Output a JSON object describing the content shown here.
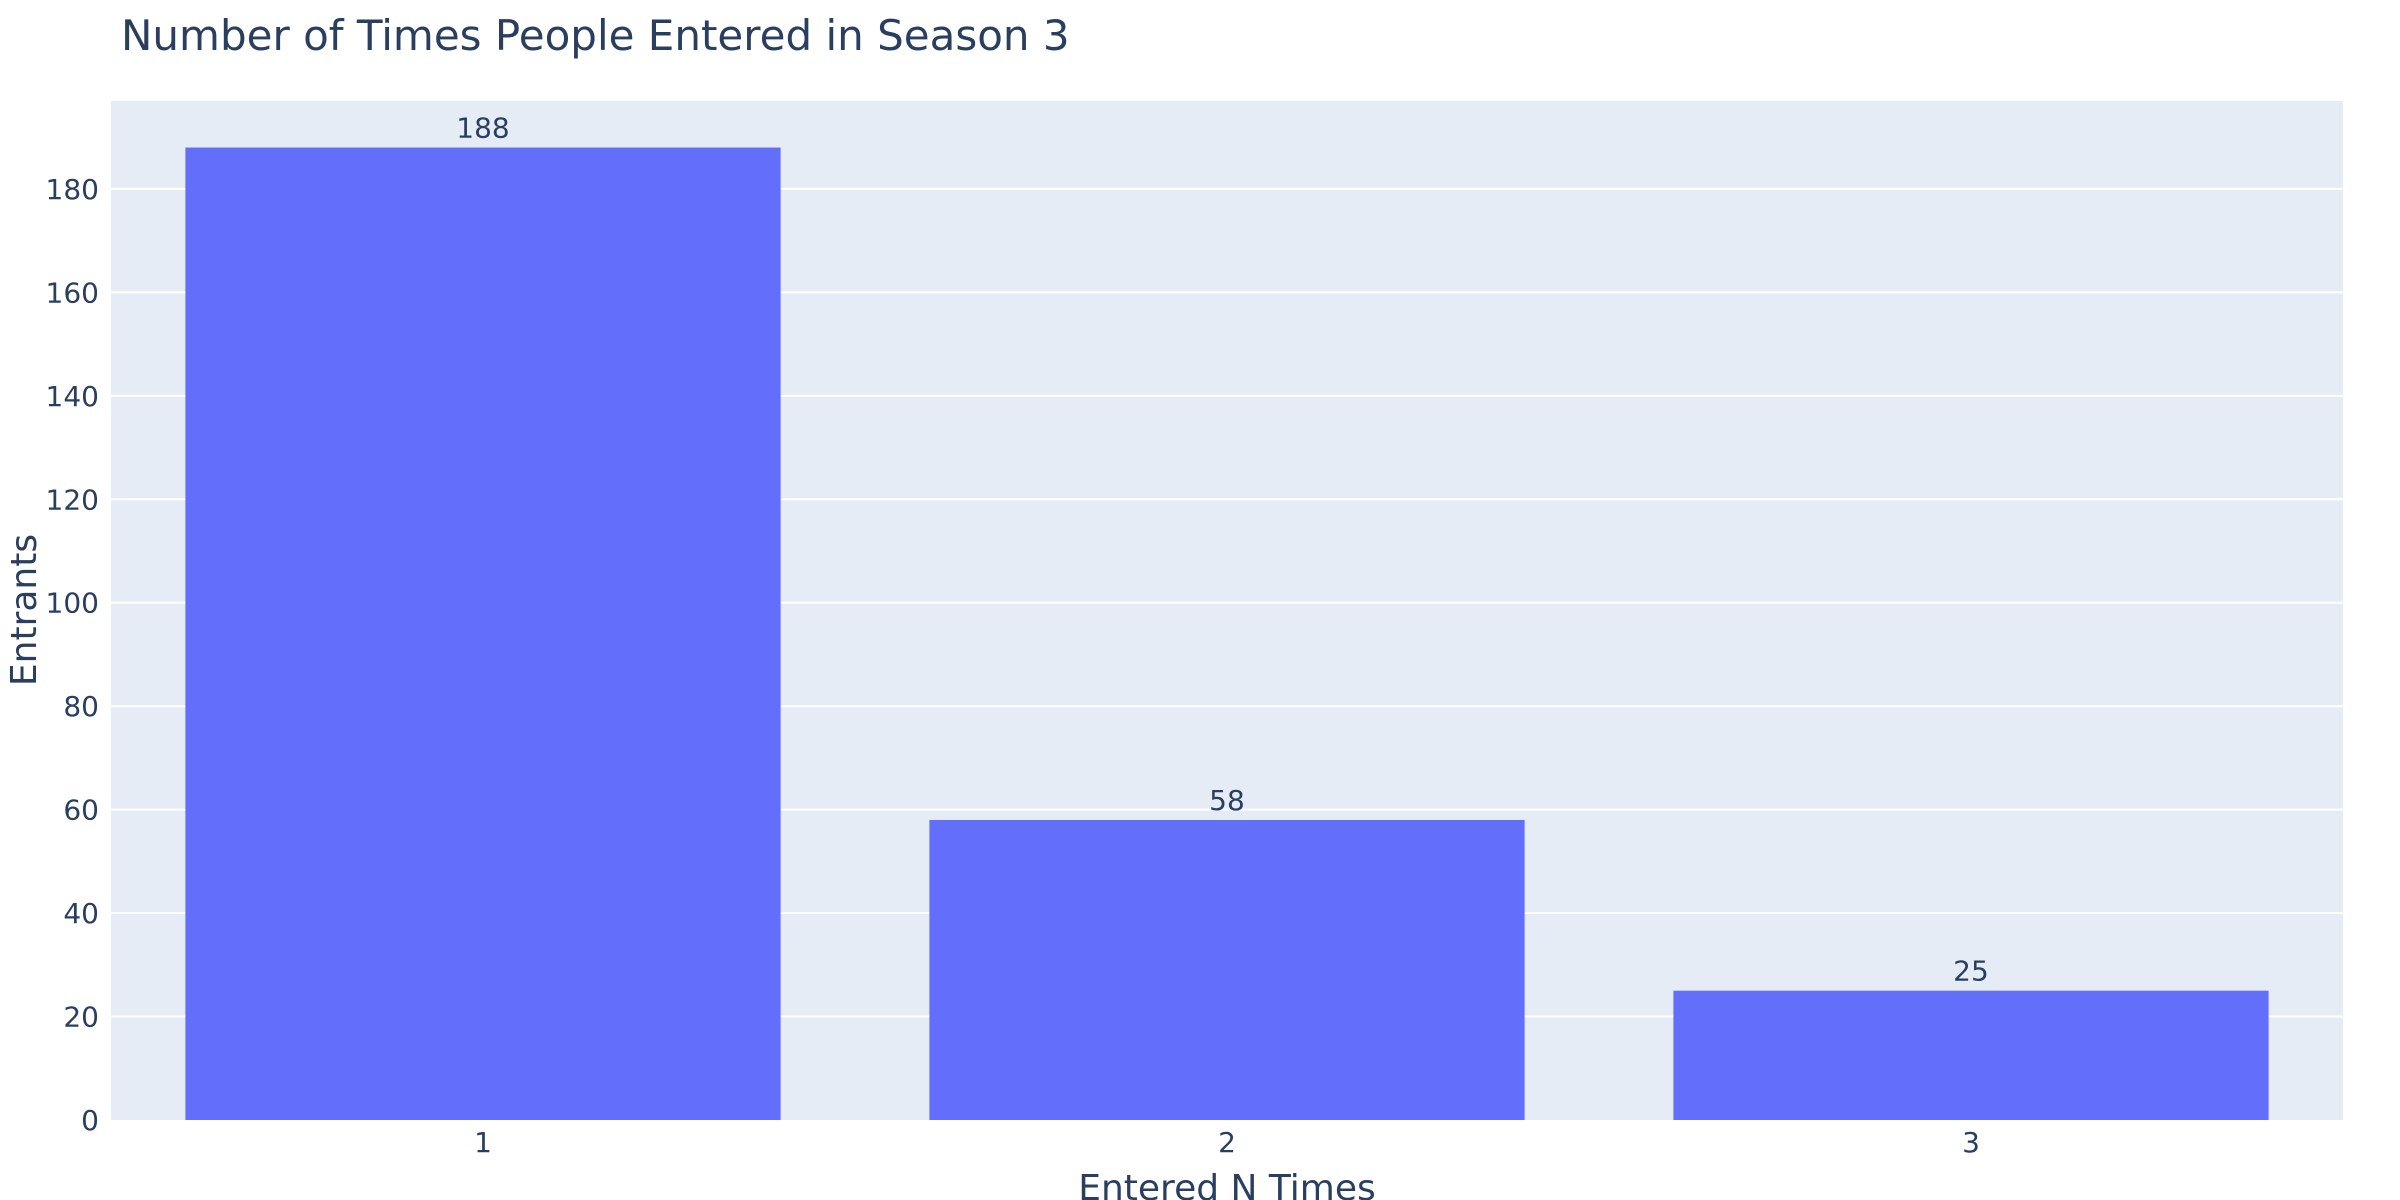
{
  "chart_data": {
    "type": "bar",
    "title": "Number of Times People Entered in Season 3",
    "xlabel": "Entered N Times",
    "ylabel": "Entrants",
    "categories": [
      "1",
      "2",
      "3"
    ],
    "values": [
      188,
      58,
      25
    ],
    "data_labels": [
      "188",
      "58",
      "25"
    ],
    "ylim": [
      0,
      197
    ],
    "yticks": [
      0,
      20,
      40,
      60,
      80,
      100,
      120,
      140,
      160,
      180
    ],
    "ytick_labels": [
      "0",
      "20",
      "40",
      "60",
      "80",
      "100",
      "120",
      "140",
      "160",
      "180"
    ],
    "grid": true,
    "legend": "none",
    "colors": {
      "bar": "#636efa",
      "plot_background": "#e5ecf6",
      "grid": "#ffffff",
      "text": "#2a3f5f"
    }
  }
}
